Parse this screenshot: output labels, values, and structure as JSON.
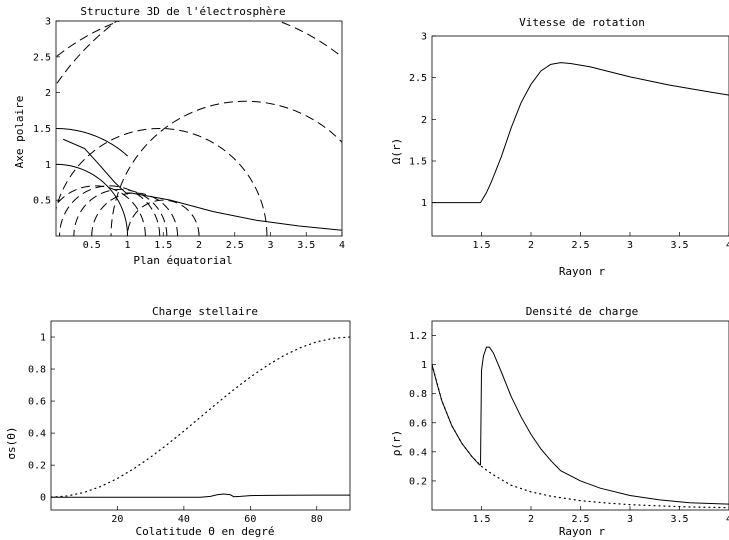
{
  "chart_data": [
    {
      "id": "structure",
      "type": "line",
      "title": "Structure 3D de l'électrosphère",
      "xlabel": "Plan équatorial",
      "ylabel": "Axe polaire",
      "xlim": [
        0,
        4
      ],
      "ylim": [
        0,
        3
      ],
      "xticks": [
        "0.5",
        "1",
        "1.5",
        "2",
        "2.5",
        "3",
        "3.5",
        "4"
      ],
      "xtick_values": [
        0.5,
        1,
        1.5,
        2,
        2.5,
        3,
        3.5,
        4
      ],
      "yticks": [
        "0.5",
        "1",
        "1.5",
        "2",
        "2.5",
        "3"
      ],
      "ytick_values": [
        0.5,
        1,
        1.5,
        2,
        2.5,
        3
      ],
      "grid": false,
      "solid_curves": [
        {
          "shape": "circle",
          "x0": 0,
          "y0": 0,
          "r": 1,
          "theta_from_deg": 0,
          "theta_to_deg": 90
        },
        {
          "shape": "arc",
          "x0": 0,
          "y0": 0,
          "r": 1.5,
          "theta_from_deg": 90,
          "theta_to_deg": 48
        },
        {
          "shape": "polyline",
          "points": [
            [
              0.98,
              0.6
            ],
            [
              1.05,
              0.6
            ],
            [
              1.6,
              0.5
            ],
            [
              2.2,
              0.34
            ],
            [
              2.8,
              0.22
            ],
            [
              3.4,
              0.14
            ],
            [
              4.0,
              0.08
            ]
          ]
        },
        {
          "shape": "line",
          "points": [
            [
              1.0,
              0.58
            ],
            [
              0.82,
              0.75
            ],
            [
              0.6,
              1.0
            ],
            [
              0.4,
              1.22
            ],
            [
              0.1,
              1.35
            ]
          ]
        }
      ],
      "dashed_circles": [
        {
          "cx": 0.55,
          "r": 0.7
        },
        {
          "cx": 0.75,
          "r": 0.7
        },
        {
          "cx": 0.9,
          "r": 0.65
        },
        {
          "cx": 1.1,
          "r": 0.6
        },
        {
          "cx": 1.5,
          "r": 0.5
        },
        {
          "cx": 1.45,
          "r": 1.5
        },
        {
          "cx": 2.65,
          "r": 1.88
        },
        {
          "cx": 2.0,
          "r": 3.2
        },
        {
          "cx": 3.1,
          "r": 3.75
        }
      ]
    },
    {
      "id": "rotation",
      "type": "line",
      "title": "Vitesse de rotation",
      "xlabel": "Rayon r",
      "ylabel": "Ω(r)",
      "xlim": [
        1,
        4
      ],
      "ylim": [
        0.6,
        3
      ],
      "xticks": [
        "1.5",
        "2",
        "2.5",
        "3",
        "3.5",
        "4"
      ],
      "xtick_values": [
        1.5,
        2,
        2.5,
        3,
        3.5,
        4
      ],
      "yticks": [
        "1",
        "1.5",
        "2",
        "2.5",
        "3"
      ],
      "ytick_values": [
        1,
        1.5,
        2,
        2.5,
        3
      ],
      "grid": false,
      "series": [
        {
          "x": [
            1.0,
            1.25,
            1.49,
            1.5,
            1.55,
            1.6,
            1.7,
            1.8,
            1.9,
            2.0,
            2.1,
            2.2,
            2.3,
            2.4,
            2.6,
            2.8,
            3.0,
            3.2,
            3.4,
            3.6,
            3.8,
            4.0
          ],
          "y": [
            1,
            1,
            1,
            1.02,
            1.12,
            1.25,
            1.55,
            1.9,
            2.2,
            2.42,
            2.58,
            2.66,
            2.68,
            2.67,
            2.63,
            2.57,
            2.51,
            2.46,
            2.41,
            2.37,
            2.33,
            2.29
          ]
        }
      ]
    },
    {
      "id": "charge",
      "type": "line",
      "title": "Charge stellaire",
      "xlabel": "Colatitude Θ en degré",
      "ylabel": "σs(Θ)",
      "xlim": [
        0,
        90
      ],
      "ylim": [
        -0.08,
        1.1
      ],
      "xticks": [
        "20",
        "40",
        "60",
        "80"
      ],
      "xtick_values": [
        20,
        40,
        60,
        80
      ],
      "yticks": [
        "0",
        "0.2",
        "0.4",
        "0.6",
        "0.8",
        "1"
      ],
      "ytick_values": [
        0,
        0.2,
        0.4,
        0.6,
        0.8,
        1
      ],
      "grid": false,
      "series": [
        {
          "style": "solid",
          "x": [
            0,
            10,
            20,
            30,
            40,
            45,
            48,
            50,
            52,
            54,
            55,
            57,
            60,
            70,
            80,
            90
          ],
          "y": [
            0,
            0,
            0,
            0,
            0,
            0,
            0.005,
            0.015,
            0.02,
            0.015,
            0.003,
            0.005,
            0.01,
            0.012,
            0.013,
            0.013
          ]
        },
        {
          "style": "dotted",
          "x": [
            0,
            5,
            10,
            15,
            20,
            25,
            30,
            35,
            40,
            45,
            50,
            55,
            60,
            65,
            70,
            75,
            80,
            85,
            90
          ],
          "y": [
            0,
            0.008,
            0.03,
            0.067,
            0.117,
            0.179,
            0.25,
            0.329,
            0.413,
            0.5,
            0.587,
            0.671,
            0.75,
            0.821,
            0.883,
            0.933,
            0.97,
            0.992,
            1.0
          ]
        }
      ]
    },
    {
      "id": "density",
      "type": "line",
      "title": "Densité de charge",
      "xlabel": "Rayon r",
      "ylabel": "ρ(r)",
      "xlim": [
        1,
        4
      ],
      "ylim": [
        0,
        1.3
      ],
      "xticks": [
        "1.5",
        "2",
        "2.5",
        "3",
        "3.5",
        "4"
      ],
      "xtick_values": [
        1.5,
        2,
        2.5,
        3,
        3.5,
        4
      ],
      "yticks": [
        "0.2",
        "0.4",
        "0.6",
        "0.8",
        "1",
        "1.2"
      ],
      "ytick_values": [
        0.2,
        0.4,
        0.6,
        0.8,
        1,
        1.2
      ],
      "grid": false,
      "series": [
        {
          "style": "solid",
          "x": [
            1.0,
            1.05,
            1.1,
            1.2,
            1.3,
            1.4,
            1.48,
            1.49,
            1.5,
            1.52,
            1.55,
            1.58,
            1.62,
            1.7,
            1.8,
            1.9,
            2.0,
            2.1,
            2.2,
            2.3,
            2.5,
            2.7,
            3.0,
            3.3,
            3.6,
            4.0
          ],
          "y": [
            1.0,
            0.87,
            0.75,
            0.58,
            0.46,
            0.37,
            0.31,
            0.31,
            0.96,
            1.06,
            1.12,
            1.12,
            1.08,
            0.95,
            0.78,
            0.64,
            0.52,
            0.42,
            0.34,
            0.27,
            0.2,
            0.15,
            0.1,
            0.07,
            0.05,
            0.04
          ]
        },
        {
          "style": "dotted",
          "x": [
            1.0,
            1.1,
            1.2,
            1.3,
            1.4,
            1.5,
            1.6,
            1.8,
            2.0,
            2.2,
            2.5,
            2.8,
            3.0,
            3.3,
            3.6,
            4.0
          ],
          "y": [
            1.0,
            0.75,
            0.58,
            0.46,
            0.37,
            0.3,
            0.25,
            0.17,
            0.125,
            0.095,
            0.064,
            0.046,
            0.037,
            0.028,
            0.021,
            0.016
          ]
        }
      ]
    }
  ]
}
